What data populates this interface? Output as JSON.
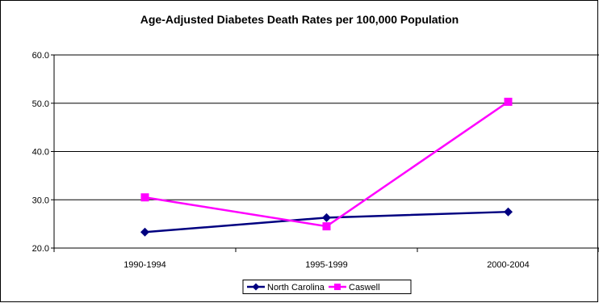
{
  "chart_data": {
    "type": "line",
    "title": "Age-Adjusted Diabetes Death Rates per 100,000 Population",
    "categories": [
      "1990-1994",
      "1995-1999",
      "2000-2004"
    ],
    "ylim": [
      20.0,
      60.0
    ],
    "yticks": [
      "20.0",
      "30.0",
      "40.0",
      "50.0",
      "60.0"
    ],
    "grid": true,
    "legend_position": "bottom",
    "series": [
      {
        "name": "North Carolina",
        "values": [
          23.3,
          26.3,
          27.5
        ],
        "color": "#000080",
        "marker": "diamond"
      },
      {
        "name": "Caswell",
        "values": [
          30.5,
          24.5,
          50.3
        ],
        "color": "#FF00FF",
        "marker": "square"
      }
    ]
  }
}
